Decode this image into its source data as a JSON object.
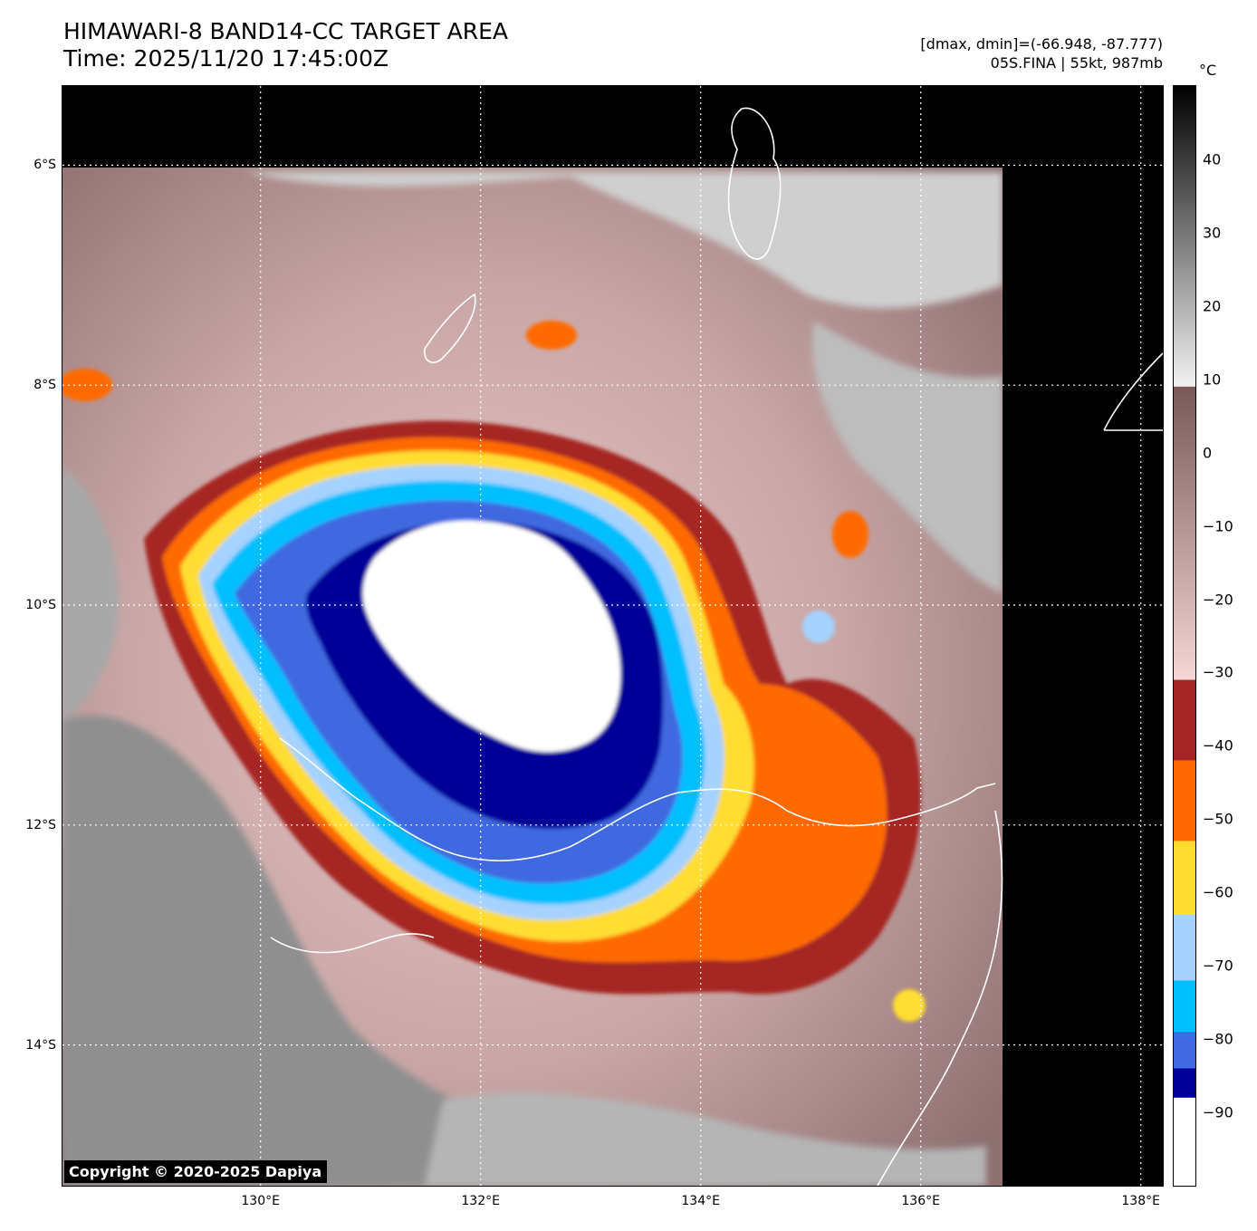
{
  "header": {
    "title_line1": "HIMAWARI-8 BAND14-CC TARGET AREA",
    "title_line2": "Time: 2025/11/20 17:45:00Z",
    "range_text": "[dmax, dmin]=(-66.948, -87.777)",
    "storm_text": "05S.FINA | 55kt, 987mb"
  },
  "map": {
    "lon_range": [
      128.2,
      138.2
    ],
    "lat_range": [
      -15.28,
      -5.28
    ],
    "data_coverage": {
      "lon_max": 136.7,
      "lat_max": -6.0
    },
    "storm_center": {
      "lon": 132.6,
      "lat": -10.3
    },
    "lat_labels": [
      {
        "value": -6,
        "text": "6°S"
      },
      {
        "value": -8,
        "text": "8°S"
      },
      {
        "value": -10,
        "text": "10°S"
      },
      {
        "value": -12,
        "text": "12°S"
      },
      {
        "value": -14,
        "text": "14°S"
      }
    ],
    "lon_labels": [
      {
        "value": 130,
        "text": "130°E"
      },
      {
        "value": 132,
        "text": "132°E"
      },
      {
        "value": 134,
        "text": "134°E"
      },
      {
        "value": 136,
        "text": "136°E"
      },
      {
        "value": 138,
        "text": "138°E"
      }
    ]
  },
  "colorbar": {
    "unit": "°C",
    "range": [
      -100,
      50
    ],
    "ticks": [
      {
        "value": 40,
        "text": "40"
      },
      {
        "value": 30,
        "text": "30"
      },
      {
        "value": 20,
        "text": "20"
      },
      {
        "value": 10,
        "text": "10"
      },
      {
        "value": 0,
        "text": "0"
      },
      {
        "value": -10,
        "text": "−10"
      },
      {
        "value": -20,
        "text": "−20"
      },
      {
        "value": -30,
        "text": "−30"
      },
      {
        "value": -40,
        "text": "−40"
      },
      {
        "value": -50,
        "text": "−50"
      },
      {
        "value": -60,
        "text": "−60"
      },
      {
        "value": -70,
        "text": "−70"
      },
      {
        "value": -80,
        "text": "−80"
      },
      {
        "value": -90,
        "text": "−90"
      }
    ],
    "segments": [
      {
        "from": 9,
        "to": 50,
        "colors": [
          "#f2f2f2",
          "#000000"
        ]
      },
      {
        "from": -31,
        "to": 9,
        "colors": [
          "#f5d5d5",
          "#7a5858"
        ]
      },
      {
        "from": -42,
        "to": -31,
        "colors": [
          "#a52524",
          "#a52524"
        ]
      },
      {
        "from": -53,
        "to": -42,
        "colors": [
          "#ff6a00",
          "#ff6a00"
        ]
      },
      {
        "from": -63,
        "to": -53,
        "colors": [
          "#ffdd30",
          "#ffdd30"
        ]
      },
      {
        "from": -72,
        "to": -63,
        "colors": [
          "#a6d2ff",
          "#a6d2ff"
        ]
      },
      {
        "from": -79,
        "to": -72,
        "colors": [
          "#00bfff",
          "#00bfff"
        ]
      },
      {
        "from": -84,
        "to": -79,
        "colors": [
          "#4169e1",
          "#4169e1"
        ]
      },
      {
        "from": -88,
        "to": -84,
        "colors": [
          "#000099",
          "#000099"
        ]
      },
      {
        "from": -100,
        "to": -88,
        "colors": [
          "#ffffff",
          "#ffffff"
        ]
      }
    ]
  },
  "copyright": "Copyright © 2020-2025 Dapiya"
}
